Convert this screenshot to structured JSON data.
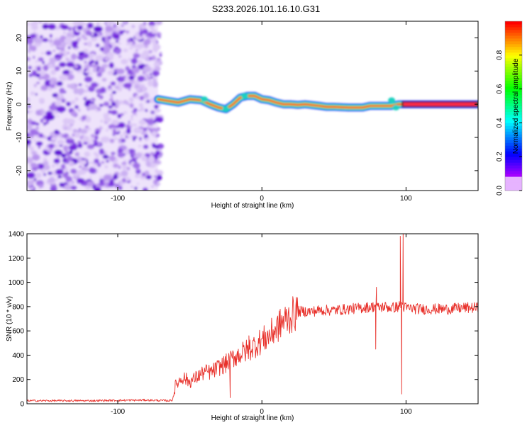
{
  "title": "S233.2026.101.16.10.G31",
  "chart_data": [
    {
      "type": "heatmap",
      "xlabel": "Height of straight line (km)",
      "ylabel": "Frequency (Hz)",
      "xlim": [
        -163,
        150
      ],
      "ylim": [
        -26,
        25
      ],
      "x_ticks": [
        -100,
        0,
        100
      ],
      "y_ticks": [
        -20,
        -10,
        0,
        10,
        20
      ],
      "noise_region_x": [
        -163,
        -72
      ],
      "ridge": {
        "x": [
          -72,
          -65,
          -58,
          -50,
          -42,
          -36,
          -30,
          -25,
          -20,
          -15,
          -10,
          -5,
          0,
          5,
          10,
          15,
          20,
          25,
          30,
          40,
          45,
          50,
          60,
          70,
          75,
          80,
          85,
          90,
          95,
          100,
          110,
          120,
          130,
          140,
          150
        ],
        "freq": [
          1.5,
          1,
          0.5,
          1.5,
          1.2,
          0,
          -1,
          -1.5,
          0,
          2,
          2.5,
          2.5,
          1.5,
          1.2,
          0.5,
          0,
          0,
          -0.2,
          0,
          -0.5,
          -0.8,
          -0.8,
          -1,
          -1,
          -0.5,
          -0.5,
          -0.5,
          -0.5,
          0,
          0,
          0,
          0,
          0,
          0,
          0
        ]
      },
      "colorbar": {
        "label": "Normalized spectral amplitude",
        "ticks": [
          "0.0",
          "0.2",
          "0.4",
          "0.6",
          "0.8"
        ],
        "range": [
          0,
          1
        ]
      }
    },
    {
      "type": "line",
      "xlabel": "Height of straight line (km)",
      "ylabel": "SNR (10 * v/v)",
      "xlim": [
        -163,
        150
      ],
      "ylim": [
        0,
        1400
      ],
      "x_ticks": [
        -100,
        0,
        100
      ],
      "y_ticks": [
        0,
        200,
        400,
        600,
        800,
        1000,
        1200,
        1400
      ],
      "series": [
        {
          "name": "SNR",
          "color": "#e8302a",
          "x": [
            -163,
            -120,
            -80,
            -65,
            -62,
            -60,
            -55,
            -50,
            -45,
            -40,
            -35,
            -30,
            -25,
            -22,
            -20,
            -15,
            -10,
            -5,
            0,
            5,
            10,
            15,
            20,
            25,
            30,
            35,
            40,
            50,
            60,
            70,
            78,
            79,
            80,
            85,
            90,
            95,
            97,
            98,
            100,
            110,
            120,
            130,
            140,
            150
          ],
          "values": [
            25,
            25,
            30,
            25,
            30,
            150,
            220,
            180,
            220,
            260,
            260,
            300,
            330,
            350,
            380,
            410,
            440,
            480,
            520,
            560,
            620,
            680,
            720,
            760,
            760,
            760,
            770,
            770,
            780,
            790,
            800,
            820,
            790,
            800,
            790,
            800,
            820,
            800,
            790,
            780,
            780,
            780,
            790,
            790
          ]
        }
      ],
      "spikes": [
        {
          "x": -22,
          "value": 50
        },
        {
          "x": -9,
          "value": 560
        },
        {
          "x": 79,
          "value": 450
        },
        {
          "x": 79.5,
          "value": 960
        },
        {
          "x": 96,
          "value": 1380
        },
        {
          "x": 97,
          "value": 80
        },
        {
          "x": 98,
          "value": 1400
        }
      ]
    }
  ]
}
